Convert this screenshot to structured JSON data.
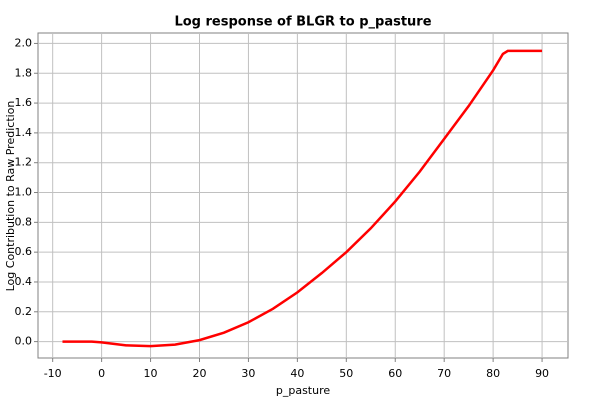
{
  "chart_data": {
    "type": "line",
    "title": "Log response of BLGR to p_pasture",
    "x_label": "p_pasture",
    "y_label": "Log Contribution to Raw Prediction",
    "x": [
      -8,
      -2,
      0,
      5,
      10,
      15,
      20,
      25,
      30,
      35,
      40,
      45,
      50,
      55,
      60,
      65,
      70,
      75,
      80,
      82,
      83,
      90
    ],
    "series": [
      {
        "color": "#ff0000",
        "values": [
          0,
          0,
          -0.005,
          -0.025,
          -0.03,
          -0.02,
          0.01,
          0.06,
          0.13,
          0.22,
          0.33,
          0.46,
          0.6,
          0.76,
          0.94,
          1.14,
          1.36,
          1.58,
          1.82,
          1.93,
          1.95,
          1.95
        ]
      }
    ],
    "xlim": [
      -13,
      95.3
    ],
    "xticks": [
      -10,
      0,
      10,
      20,
      30,
      40,
      50,
      60,
      70,
      80,
      90
    ],
    "ylim": [
      -0.11,
      2.07
    ],
    "yticks": [
      {
        "value": 0,
        "label": "0.0"
      },
      0.2,
      0.4,
      0.6,
      0.8,
      {
        "value": 1,
        "label": "1.0"
      },
      1.2,
      1.4,
      1.6,
      1.8,
      {
        "value": 2,
        "label": "2.0"
      }
    ],
    "grid": true
  }
}
